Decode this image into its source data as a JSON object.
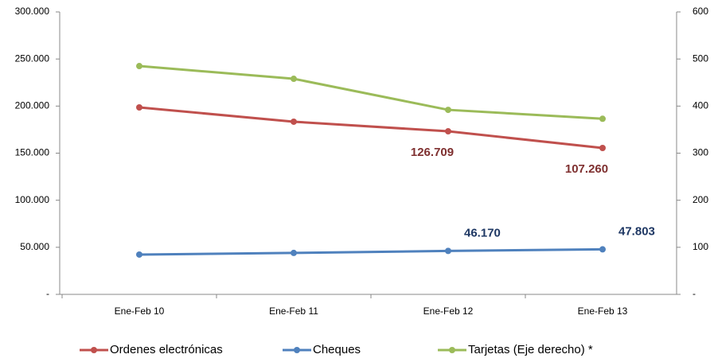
{
  "chart_data": {
    "type": "line",
    "categories": [
      "Ene-Feb 10",
      "Ene-Feb 11",
      "Ene-Feb 12",
      "Ene-Feb 13"
    ],
    "ylim": [
      0,
      300000
    ],
    "yticks": [
      {
        "value": 0,
        "label": "-"
      },
      {
        "value": 50000,
        "label": "50.000"
      },
      {
        "value": 100000,
        "label": "100.000"
      },
      {
        "value": 150000,
        "label": "150.000"
      },
      {
        "value": 200000,
        "label": "200.000"
      },
      {
        "value": 250000,
        "label": "250.000"
      },
      {
        "value": 300000,
        "label": "300.000"
      }
    ],
    "y2lim": [
      0,
      600
    ],
    "y2ticks": [
      {
        "value": 0,
        "label": "-"
      },
      100,
      200,
      300,
      400,
      500,
      600
    ],
    "series": [
      {
        "name": "Ordenes electrónicas",
        "color": "#c0504d",
        "values": [
          198600,
          183400,
          173200,
          155500
        ]
      },
      {
        "name": "Cheques",
        "color": "#4f81bd",
        "values": [
          42300,
          44000,
          46170,
          47803
        ],
        "value_labels": [
          null,
          null,
          "46.170",
          "47.803"
        ]
      },
      {
        "name": "Tarjetas (Eje derecho) *",
        "color": "#9bbb59",
        "axis": "y2",
        "values": [
          485,
          458,
          392,
          373
        ]
      }
    ],
    "annotations": [
      "126.709",
      "107.260"
    ],
    "legend": "bottom"
  }
}
